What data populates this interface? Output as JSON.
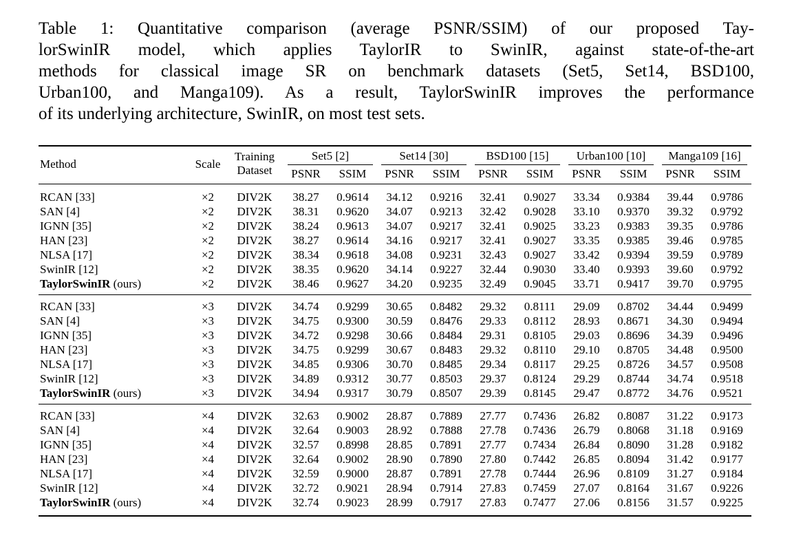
{
  "page": {
    "background_color": "#ffffff",
    "text_color": "#000000"
  },
  "caption": {
    "lines": [
      "Table 1: Quantitative comparison (average PSNR/SSIM) of our proposed Tay-",
      "lorSwinIR model, which applies TaylorIR to SwinIR, against state-of-the-art",
      "methods for classical image SR on benchmark datasets (Set5, Set14, BSD100,",
      "Urban100, and Manga109). As a result, TaylorSwinIR improves the performance",
      "of its underlying architecture, SwinIR, on most test sets."
    ],
    "full_text": "Table 1: Quantitative comparison (average PSNR/SSIM) of our proposed TaylorSwinIR model, which applies TaylorIR to SwinIR, against state-of-the-art methods for classical image SR on benchmark datasets (Set5, Set14, BSD100, Urban100, and Manga109). As a result, TaylorSwinIR improves the performance of its underlying architecture, SwinIR, on most test sets."
  },
  "table": {
    "headers": {
      "method": "Method",
      "scale": "Scale",
      "training_line1": "Training",
      "training_line2": "Dataset",
      "datasets": [
        "Set5 [2]",
        "Set14 [30]",
        "BSD100 [15]",
        "Urban100 [10]",
        "Manga109 [16]"
      ],
      "metrics": [
        "PSNR",
        "SSIM"
      ]
    },
    "groups": [
      {
        "scale": "×2",
        "rows": [
          {
            "method": "RCAN [33]",
            "method_suffix": "",
            "method_bold": false,
            "scale": "×2",
            "training": "DIV2K",
            "values": [
              "38.27",
              "0.9614",
              "34.12",
              "0.9216",
              "32.41",
              "0.9027",
              "33.34",
              "0.9384",
              "39.44",
              "0.9786"
            ],
            "bold": []
          },
          {
            "method": "SAN [4]",
            "method_suffix": "",
            "method_bold": false,
            "scale": "×2",
            "training": "DIV2K",
            "values": [
              "38.31",
              "0.9620",
              "34.07",
              "0.9213",
              "32.42",
              "0.9028",
              "33.10",
              "0.9370",
              "39.32",
              "0.9792"
            ],
            "bold": []
          },
          {
            "method": "IGNN [35]",
            "method_suffix": "",
            "method_bold": false,
            "scale": "×2",
            "training": "DIV2K",
            "values": [
              "38.24",
              "0.9613",
              "34.07",
              "0.9217",
              "32.41",
              "0.9025",
              "33.23",
              "0.9383",
              "39.35",
              "0.9786"
            ],
            "bold": []
          },
          {
            "method": "HAN [23]",
            "method_suffix": "",
            "method_bold": false,
            "scale": "×2",
            "training": "DIV2K",
            "values": [
              "38.27",
              "0.9614",
              "34.16",
              "0.9217",
              "32.41",
              "0.9027",
              "33.35",
              "0.9385",
              "39.46",
              "0.9785"
            ],
            "bold": []
          },
          {
            "method": "NLSA [17]",
            "method_suffix": "",
            "method_bold": false,
            "scale": "×2",
            "training": "DIV2K",
            "values": [
              "38.34",
              "0.9618",
              "34.08",
              "0.9231",
              "32.43",
              "0.9027",
              "33.42",
              "0.9394",
              "39.59",
              "0.9789"
            ],
            "bold": []
          },
          {
            "method": "SwinIR [12]",
            "method_suffix": "",
            "method_bold": false,
            "scale": "×2",
            "training": "DIV2K",
            "values": [
              "38.35",
              "0.9620",
              "34.14",
              "0.9227",
              "32.44",
              "0.9030",
              "33.40",
              "0.9393",
              "39.60",
              "0.9792"
            ],
            "bold": []
          },
          {
            "method": "TaylorSwinIR",
            "method_suffix": "(ours)",
            "method_bold": true,
            "scale": "×2",
            "training": "DIV2K",
            "values": [
              "38.46",
              "0.9627",
              "34.20",
              "0.9235",
              "32.49",
              "0.9045",
              "33.71",
              "0.9417",
              "39.70",
              "0.9795"
            ],
            "bold": [
              0,
              1,
              2,
              3,
              4,
              5,
              6,
              7,
              8,
              9
            ]
          }
        ]
      },
      {
        "scale": "×3",
        "rows": [
          {
            "method": "RCAN [33]",
            "method_suffix": "",
            "method_bold": false,
            "scale": "×3",
            "training": "DIV2K",
            "values": [
              "34.74",
              "0.9299",
              "30.65",
              "0.8482",
              "29.32",
              "0.8111",
              "29.09",
              "0.8702",
              "34.44",
              "0.9499"
            ],
            "bold": []
          },
          {
            "method": "SAN [4]",
            "method_suffix": "",
            "method_bold": false,
            "scale": "×3",
            "training": "DIV2K",
            "values": [
              "34.75",
              "0.9300",
              "30.59",
              "0.8476",
              "29.33",
              "0.8112",
              "28.93",
              "0.8671",
              "34.30",
              "0.9494"
            ],
            "bold": []
          },
          {
            "method": "IGNN [35]",
            "method_suffix": "",
            "method_bold": false,
            "scale": "×3",
            "training": "DIV2K",
            "values": [
              "34.72",
              "0.9298",
              "30.66",
              "0.8484",
              "29.31",
              "0.8105",
              "29.03",
              "0.8696",
              "34.39",
              "0.9496"
            ],
            "bold": []
          },
          {
            "method": "HAN [23]",
            "method_suffix": "",
            "method_bold": false,
            "scale": "×3",
            "training": "DIV2K",
            "values": [
              "34.75",
              "0.9299",
              "30.67",
              "0.8483",
              "29.32",
              "0.8110",
              "29.10",
              "0.8705",
              "34.48",
              "0.9500"
            ],
            "bold": []
          },
          {
            "method": "NLSA [17]",
            "method_suffix": "",
            "method_bold": false,
            "scale": "×3",
            "training": "DIV2K",
            "values": [
              "34.85",
              "0.9306",
              "30.70",
              "0.8485",
              "29.34",
              "0.8117",
              "29.25",
              "0.8726",
              "34.57",
              "0.9508"
            ],
            "bold": []
          },
          {
            "method": "SwinIR [12]",
            "method_suffix": "",
            "method_bold": false,
            "scale": "×3",
            "training": "DIV2K",
            "values": [
              "34.89",
              "0.9312",
              "30.77",
              "0.8503",
              "29.37",
              "0.8124",
              "29.29",
              "0.8744",
              "34.74",
              "0.9518"
            ],
            "bold": []
          },
          {
            "method": "TaylorSwinIR",
            "method_suffix": "(ours)",
            "method_bold": true,
            "scale": "×3",
            "training": "DIV2K",
            "values": [
              "34.94",
              "0.9317",
              "30.79",
              "0.8507",
              "29.39",
              "0.8145",
              "29.47",
              "0.8772",
              "34.76",
              "0.9521"
            ],
            "bold": [
              0,
              1,
              2,
              3,
              4,
              5,
              6,
              7,
              8,
              9
            ]
          }
        ]
      },
      {
        "scale": "×4",
        "rows": [
          {
            "method": "RCAN [33]",
            "method_suffix": "",
            "method_bold": false,
            "scale": "×4",
            "training": "DIV2K",
            "values": [
              "32.63",
              "0.9002",
              "28.87",
              "0.7889",
              "27.77",
              "0.7436",
              "26.82",
              "0.8087",
              "31.22",
              "0.9173"
            ],
            "bold": []
          },
          {
            "method": "SAN [4]",
            "method_suffix": "",
            "method_bold": false,
            "scale": "×4",
            "training": "DIV2K",
            "values": [
              "32.64",
              "0.9003",
              "28.92",
              "0.7888",
              "27.78",
              "0.7436",
              "26.79",
              "0.8068",
              "31.18",
              "0.9169"
            ],
            "bold": []
          },
          {
            "method": "IGNN [35]",
            "method_suffix": "",
            "method_bold": false,
            "scale": "×4",
            "training": "DIV2K",
            "values": [
              "32.57",
              "0.8998",
              "28.85",
              "0.7891",
              "27.77",
              "0.7434",
              "26.84",
              "0.8090",
              "31.28",
              "0.9182"
            ],
            "bold": []
          },
          {
            "method": "HAN [23]",
            "method_suffix": "",
            "method_bold": false,
            "scale": "×4",
            "training": "DIV2K",
            "values": [
              "32.64",
              "0.9002",
              "28.90",
              "0.7890",
              "27.80",
              "0.7442",
              "26.85",
              "0.8094",
              "31.42",
              "0.9177"
            ],
            "bold": []
          },
          {
            "method": "NLSA [17]",
            "method_suffix": "",
            "method_bold": false,
            "scale": "×4",
            "training": "DIV2K",
            "values": [
              "32.59",
              "0.9000",
              "28.87",
              "0.7891",
              "27.78",
              "0.7444",
              "26.96",
              "0.8109",
              "31.27",
              "0.9184"
            ],
            "bold": []
          },
          {
            "method": "SwinIR [12]",
            "method_suffix": "",
            "method_bold": false,
            "scale": "×4",
            "training": "DIV2K",
            "values": [
              "32.72",
              "0.9021",
              "28.94",
              "0.7914",
              "27.83",
              "0.7459",
              "27.07",
              "0.8164",
              "31.67",
              "0.9226"
            ],
            "bold": [
              6,
              7,
              8,
              9
            ]
          },
          {
            "method": "TaylorSwinIR",
            "method_suffix": "(ours)",
            "method_bold": true,
            "scale": "×4",
            "training": "DIV2K",
            "values": [
              "32.74",
              "0.9023",
              "28.99",
              "0.7917",
              "27.83",
              "0.7477",
              "27.06",
              "0.8156",
              "31.57",
              "0.9225"
            ],
            "bold": [
              0,
              1,
              2,
              3,
              4,
              5
            ]
          }
        ]
      }
    ]
  }
}
